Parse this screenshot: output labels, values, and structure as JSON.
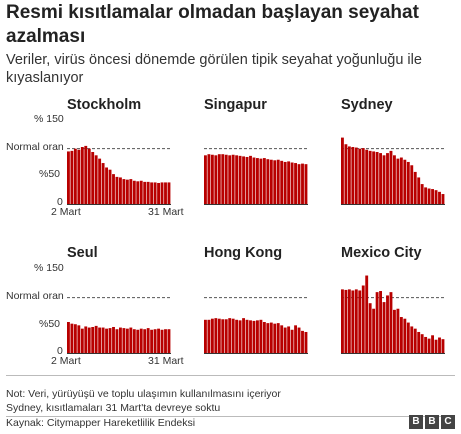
{
  "title": "Resmi kısıtlamalar olmadan başlayan seyahat azalması",
  "subtitle": "Veriler, virüs öncesi dönemde görülen tipik seyahat yoğunluğu ile kıyaslanıyor",
  "axis": {
    "top_label": "% 150",
    "normal_label": "Normal oran",
    "mid_label": "%50",
    "zero_label": "0",
    "x_start": "2 Mart",
    "x_end": "31 Mart"
  },
  "colors": {
    "bar": "#b80000",
    "reference": "#555555"
  },
  "chart_data": [
    {
      "type": "bar",
      "title": "Stockholm",
      "ylim": [
        0,
        150
      ],
      "reference": 100,
      "values": [
        95,
        96,
        100,
        98,
        103,
        105,
        100,
        94,
        88,
        82,
        74,
        66,
        62,
        54,
        49,
        48,
        45,
        44,
        45,
        42,
        41,
        42,
        40,
        40,
        39,
        39,
        38,
        39,
        39,
        39
      ]
    },
    {
      "type": "bar",
      "title": "Singapur",
      "ylim": [
        0,
        150
      ],
      "reference": 100,
      "values": [
        88,
        90,
        89,
        88,
        90,
        90,
        89,
        88,
        89,
        88,
        87,
        86,
        85,
        87,
        84,
        83,
        82,
        83,
        81,
        80,
        79,
        80,
        78,
        76,
        77,
        75,
        74,
        72,
        73,
        72
      ]
    },
    {
      "type": "bar",
      "title": "Sydney",
      "ylim": [
        0,
        150
      ],
      "reference": 100,
      "values": [
        120,
        108,
        104,
        103,
        102,
        100,
        101,
        98,
        96,
        95,
        94,
        92,
        88,
        92,
        96,
        88,
        82,
        84,
        80,
        76,
        70,
        58,
        48,
        36,
        30,
        28,
        27,
        25,
        22,
        18
      ]
    },
    {
      "type": "bar",
      "title": "Seul",
      "ylim": [
        0,
        150
      ],
      "reference": 100,
      "values": [
        56,
        53,
        52,
        50,
        44,
        48,
        46,
        47,
        49,
        46,
        46,
        44,
        45,
        47,
        43,
        46,
        45,
        44,
        46,
        43,
        42,
        44,
        43,
        45,
        42,
        43,
        44,
        42,
        43,
        43
      ]
    },
    {
      "type": "bar",
      "title": "Hong Kong",
      "ylim": [
        0,
        150
      ],
      "reference": 100,
      "values": [
        60,
        60,
        62,
        63,
        62,
        61,
        61,
        63,
        62,
        60,
        59,
        63,
        60,
        59,
        58,
        59,
        60,
        56,
        54,
        55,
        53,
        54,
        50,
        46,
        48,
        42,
        50,
        46,
        40,
        38
      ]
    },
    {
      "type": "bar",
      "title": "Mexico City",
      "ylim": [
        0,
        150
      ],
      "reference": 100,
      "values": [
        115,
        114,
        115,
        113,
        115,
        113,
        122,
        140,
        90,
        80,
        110,
        112,
        92,
        104,
        110,
        78,
        80,
        65,
        62,
        55,
        48,
        44,
        38,
        34,
        29,
        26,
        32,
        24,
        28,
        25
      ]
    }
  ],
  "notes": [
    "Not: Veri, yürüyüşü ve toplu ulaşımın kullanılmasını içeriyor",
    "Sydney, kısıtlamaları 31 Mart'ta devreye soktu"
  ],
  "source": "Kaynak: Citymapper Hareketlilik Endeksi",
  "brand": [
    "B",
    "B",
    "C"
  ]
}
